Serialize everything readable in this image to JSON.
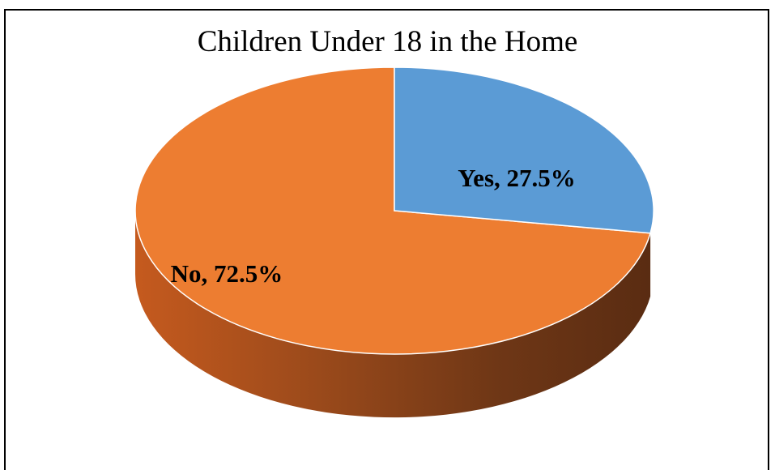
{
  "chart_data": {
    "type": "pie",
    "title": "Children Under 18 in the Home",
    "categories": [
      "Yes",
      "No"
    ],
    "values": [
      27.5,
      72.5
    ],
    "labels": [
      "Yes, 27.5%",
      "No, 72.5%"
    ],
    "colors": [
      "#5B9BD5",
      "#ED7D31"
    ],
    "style": "3d"
  }
}
